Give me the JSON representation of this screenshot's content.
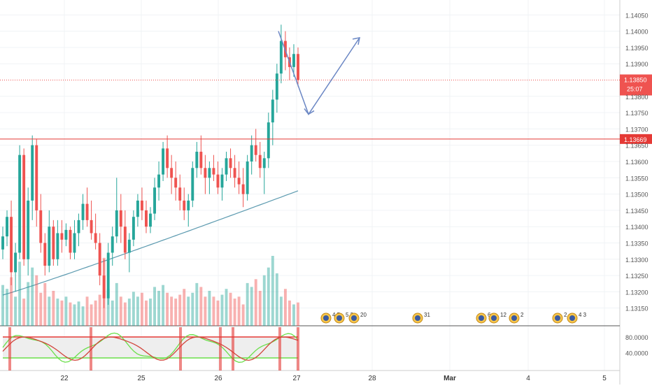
{
  "chart_data": {
    "type": "candlestick",
    "symbol": "",
    "price_axis": {
      "ticks": [
        "1.14050",
        "1.14000",
        "1.13950",
        "1.13900",
        "1.13800",
        "1.13750",
        "1.13700",
        "1.13650",
        "1.13600",
        "1.13550",
        "1.13500",
        "1.13450",
        "1.13400",
        "1.13350",
        "1.13300",
        "1.13250",
        "1.13200",
        "1.13150"
      ],
      "range": [
        1.1313,
        1.1407
      ]
    },
    "time_axis": {
      "ticks": [
        "22",
        "25",
        "26",
        "27",
        "28",
        "Mar",
        "4",
        "5"
      ]
    },
    "last_price": {
      "value": "1.13850",
      "countdown": "25:07"
    },
    "horizontal_line": {
      "value": "1.13669"
    },
    "moving_average": {
      "color": "#5d9bb0",
      "from": 1.1319,
      "to": 1.1351
    },
    "candles": [
      [
        1.1333,
        1.134,
        1.133,
        1.1337
      ],
      [
        1.1337,
        1.1345,
        1.1334,
        1.1343
      ],
      [
        1.1343,
        1.1348,
        1.1322,
        1.1326
      ],
      [
        1.1326,
        1.1335,
        1.132,
        1.1332
      ],
      [
        1.1332,
        1.1365,
        1.133,
        1.1362
      ],
      [
        1.1362,
        1.1364,
        1.1328,
        1.133
      ],
      [
        1.133,
        1.1352,
        1.1325,
        1.1348
      ],
      [
        1.1348,
        1.1368,
        1.1342,
        1.1365
      ],
      [
        1.1365,
        1.1367,
        1.134,
        1.1345
      ],
      [
        1.1345,
        1.135,
        1.1332,
        1.1335
      ],
      [
        1.1335,
        1.1338,
        1.1325,
        1.1328
      ],
      [
        1.1328,
        1.1345,
        1.1326,
        1.134
      ],
      [
        1.134,
        1.1342,
        1.1328,
        1.133
      ],
      [
        1.133,
        1.1342,
        1.1328,
        1.1338
      ],
      [
        1.1338,
        1.1342,
        1.1332,
        1.1336
      ],
      [
        1.1336,
        1.1341,
        1.1334,
        1.1339
      ],
      [
        1.1339,
        1.134,
        1.133,
        1.1332
      ],
      [
        1.1332,
        1.1342,
        1.133,
        1.1338
      ],
      [
        1.1338,
        1.1344,
        1.1334,
        1.1342
      ],
      [
        1.1342,
        1.135,
        1.1339,
        1.1347
      ],
      [
        1.1347,
        1.1352,
        1.134,
        1.1342
      ],
      [
        1.1342,
        1.1348,
        1.1336,
        1.1338
      ],
      [
        1.1338,
        1.1344,
        1.1333,
        1.1335
      ],
      [
        1.1335,
        1.1338,
        1.1322,
        1.1325
      ],
      [
        1.1325,
        1.133,
        1.1315,
        1.1318
      ],
      [
        1.1318,
        1.1335,
        1.1316,
        1.1332
      ],
      [
        1.1332,
        1.134,
        1.1328,
        1.1337
      ],
      [
        1.1337,
        1.1355,
        1.1335,
        1.1345
      ],
      [
        1.1345,
        1.135,
        1.1335,
        1.134
      ],
      [
        1.134,
        1.1345,
        1.133,
        1.1332
      ],
      [
        1.1332,
        1.1338,
        1.1326,
        1.1336
      ],
      [
        1.1336,
        1.1345,
        1.1334,
        1.1343
      ],
      [
        1.1343,
        1.135,
        1.134,
        1.1348
      ],
      [
        1.1348,
        1.1352,
        1.1342,
        1.1345
      ],
      [
        1.1345,
        1.1348,
        1.1338,
        1.134
      ],
      [
        1.134,
        1.1346,
        1.1338,
        1.1344
      ],
      [
        1.1344,
        1.1355,
        1.1342,
        1.1352
      ],
      [
        1.1352,
        1.136,
        1.1348,
        1.1356
      ],
      [
        1.1356,
        1.1366,
        1.1354,
        1.1364
      ],
      [
        1.1364,
        1.1368,
        1.1355,
        1.1358
      ],
      [
        1.1358,
        1.1362,
        1.135,
        1.1355
      ],
      [
        1.1355,
        1.136,
        1.1348,
        1.1352
      ],
      [
        1.1352,
        1.1356,
        1.1345,
        1.1348
      ],
      [
        1.1348,
        1.1352,
        1.1342,
        1.1345
      ],
      [
        1.1345,
        1.135,
        1.134,
        1.1348
      ],
      [
        1.1348,
        1.136,
        1.1346,
        1.1358
      ],
      [
        1.1358,
        1.1366,
        1.1355,
        1.1363
      ],
      [
        1.1363,
        1.1368,
        1.1356,
        1.1358
      ],
      [
        1.1358,
        1.1362,
        1.135,
        1.1355
      ],
      [
        1.1355,
        1.136,
        1.135,
        1.1358
      ],
      [
        1.1358,
        1.1362,
        1.1354,
        1.1356
      ],
      [
        1.1356,
        1.136,
        1.135,
        1.1352
      ],
      [
        1.1352,
        1.1358,
        1.1348,
        1.1356
      ],
      [
        1.1356,
        1.1363,
        1.1354,
        1.1361
      ],
      [
        1.1361,
        1.1364,
        1.1355,
        1.1358
      ],
      [
        1.1358,
        1.1362,
        1.1352,
        1.1355
      ],
      [
        1.1355,
        1.136,
        1.135,
        1.1353
      ],
      [
        1.1353,
        1.1358,
        1.1346,
        1.135
      ],
      [
        1.135,
        1.1362,
        1.1348,
        1.136
      ],
      [
        1.136,
        1.1368,
        1.1356,
        1.1365
      ],
      [
        1.1365,
        1.137,
        1.136,
        1.1362
      ],
      [
        1.1362,
        1.1366,
        1.1355,
        1.1358
      ],
      [
        1.1358,
        1.1363,
        1.135,
        1.1361
      ],
      [
        1.1361,
        1.1375,
        1.1358,
        1.1372
      ],
      [
        1.1372,
        1.1382,
        1.1365,
        1.1379
      ],
      [
        1.1379,
        1.139,
        1.1375,
        1.1387
      ],
      [
        1.1387,
        1.1402,
        1.1384,
        1.1397
      ],
      [
        1.1397,
        1.14,
        1.1388,
        1.1392
      ],
      [
        1.1392,
        1.1395,
        1.1385,
        1.1389
      ],
      [
        1.1389,
        1.1396,
        1.1386,
        1.1393
      ],
      [
        1.1393,
        1.1395,
        1.1383,
        1.1385
      ]
    ],
    "volume": [
      42,
      38,
      50,
      30,
      66,
      28,
      45,
      60,
      52,
      34,
      44,
      30,
      36,
      28,
      26,
      30,
      24,
      22,
      25,
      20,
      30,
      22,
      26,
      32,
      70,
      38,
      26,
      44,
      30,
      24,
      28,
      35,
      30,
      34,
      26,
      28,
      40,
      36,
      42,
      34,
      30,
      28,
      32,
      38,
      30,
      34,
      44,
      40,
      30,
      36,
      30,
      26,
      32,
      38,
      34,
      28,
      30,
      22,
      44,
      40,
      48,
      36,
      52,
      60,
      72,
      54,
      30,
      38,
      26,
      22,
      24
    ],
    "projection": {
      "points": [
        [
          1.14
        ],
        [
          1.13745
        ],
        [
          1.1398
        ]
      ]
    },
    "events": [
      "4",
      "5",
      "20",
      "2",
      "31",
      "2",
      "6",
      "12",
      "2",
      "2",
      "4",
      "3"
    ],
    "oscillator": {
      "ticks": [
        "80.0000",
        "40.0000"
      ],
      "upper": 80,
      "lower": 20
    }
  }
}
